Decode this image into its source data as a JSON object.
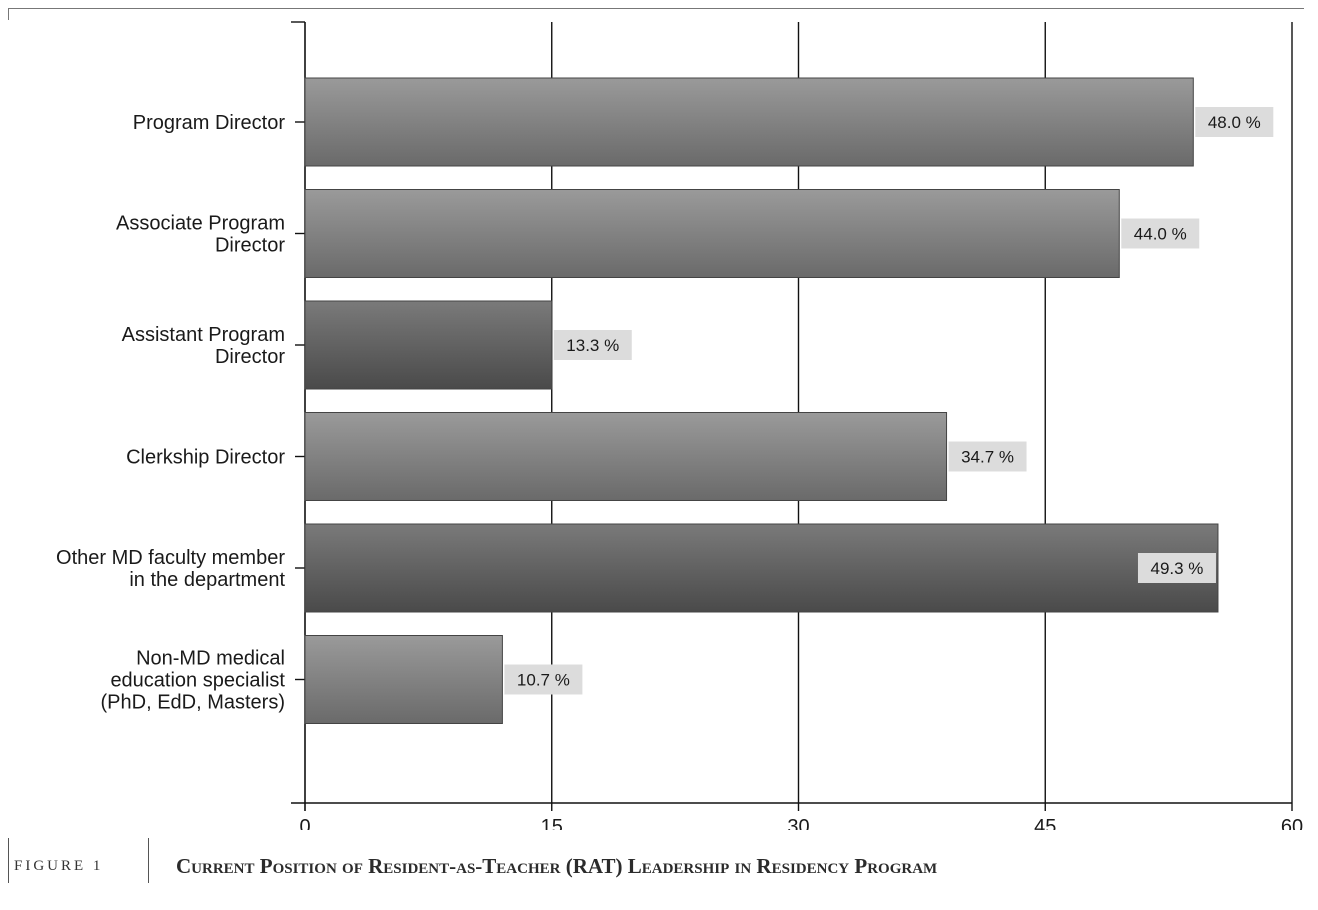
{
  "figure": {
    "number": "FIGURE 1",
    "title": "Current Position of Resident-as-Teacher (RAT) Leadership in Residency Program"
  },
  "chart_data": {
    "type": "bar",
    "orientation": "horizontal",
    "categories": [
      [
        "Program Director"
      ],
      [
        "Associate Program",
        "Director"
      ],
      [
        "Assistant Program",
        "Director"
      ],
      [
        "Clerkship Director"
      ],
      [
        "Other MD faculty member",
        "in the department"
      ],
      [
        "Non-MD medical",
        "education specialist",
        "(PhD, EdD, Masters)"
      ]
    ],
    "values": [
      54,
      49.5,
      15,
      39,
      55.5,
      12
    ],
    "value_labels": [
      "48.0 %",
      "44.0 %",
      "13.3 %",
      "34.7 %",
      "49.3 %",
      "10.7 %"
    ],
    "bar_shades": [
      "light",
      "light",
      "dark",
      "light",
      "dark",
      "light"
    ],
    "xlim": [
      0,
      60
    ],
    "xticks": [
      0,
      15,
      30,
      45,
      60
    ],
    "xtick_labels": [
      "0",
      "15",
      "30",
      "45",
      "60"
    ],
    "grid": "vertical",
    "title": "",
    "xlabel": "",
    "ylabel": "",
    "colors": {
      "bar_light_top": "#9a9a9a",
      "bar_light_bottom": "#6a6a6a",
      "bar_dark_top": "#7a7a7a",
      "bar_dark_bottom": "#4a4a4a",
      "label_bg": "#dcdcdc",
      "axis": "#111111"
    }
  }
}
